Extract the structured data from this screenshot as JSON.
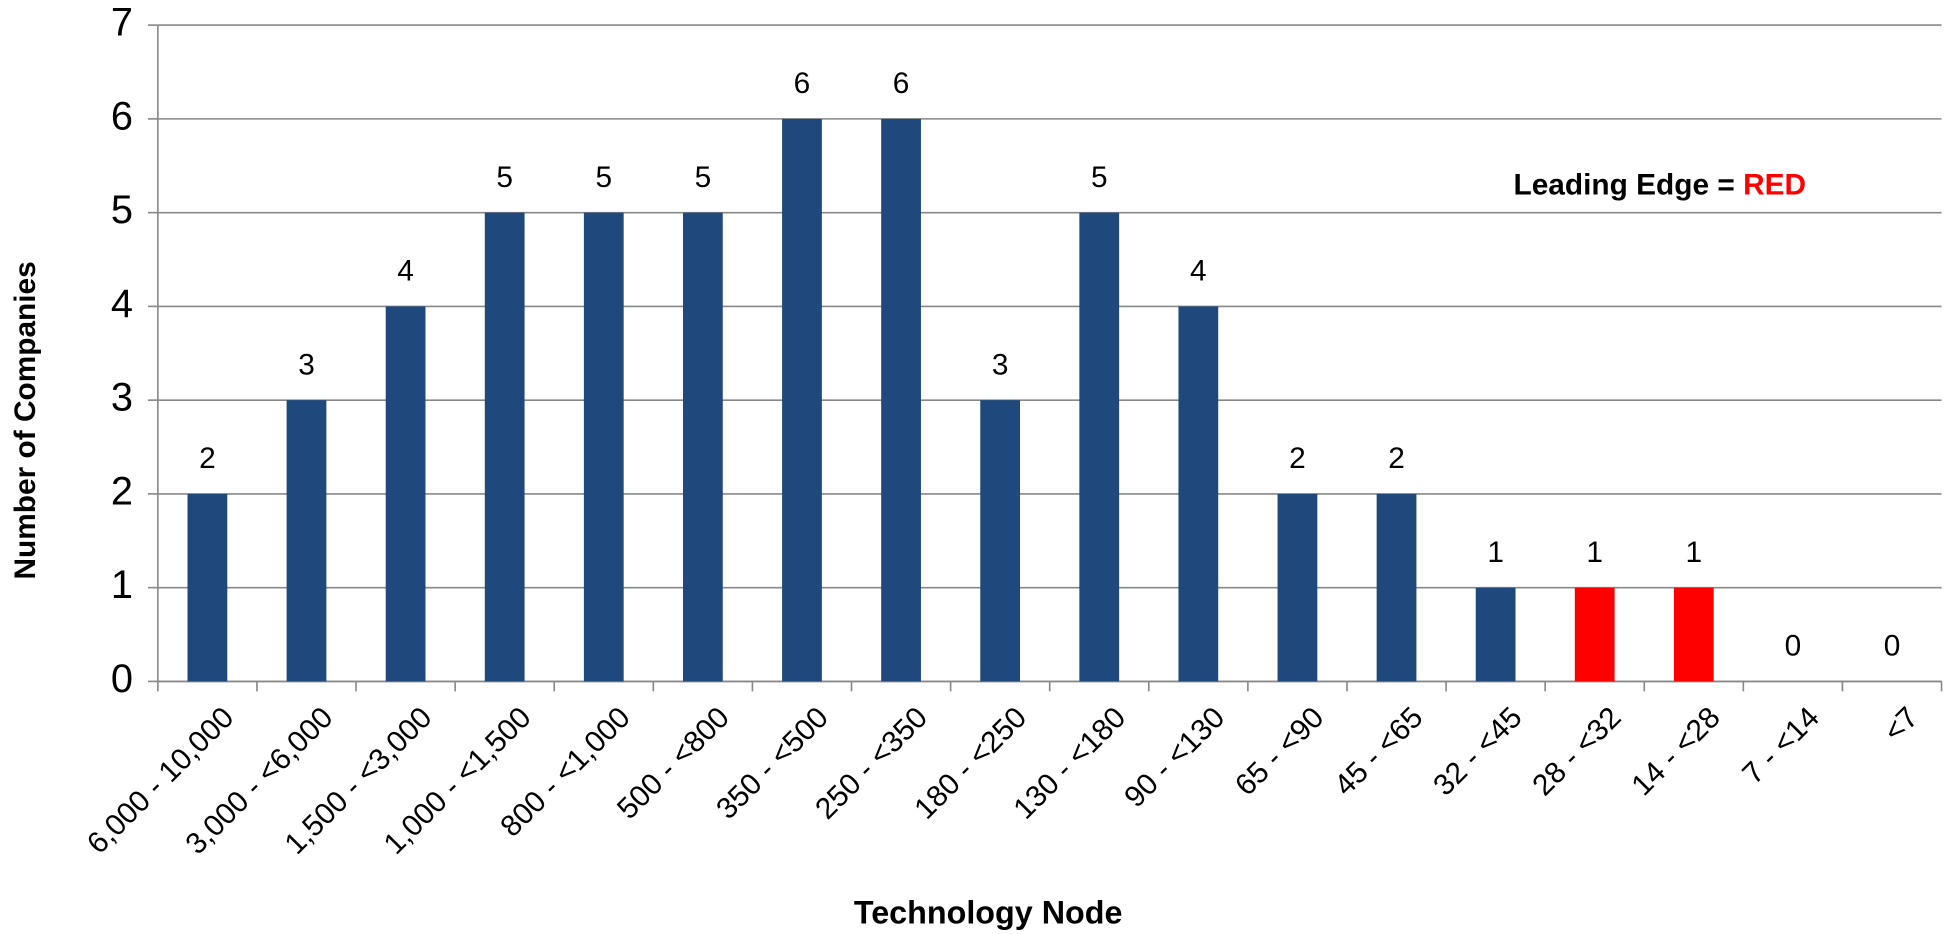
{
  "chart_data": {
    "type": "bar",
    "x_label": "Technology Node",
    "y_label": "Number of Companies",
    "categories": [
      "6,000 - 10,000",
      "3,000 - <6,000",
      "1,500 - <3,000",
      "1,000 - <1,500",
      "800 - <1,000",
      "500 - <800",
      "350 - <500",
      "250 - <350",
      "180 - <250",
      "130 - <180",
      "90 - <130",
      "65 - <90",
      "45 - <65",
      "32 - <45",
      "28 - <32",
      "14 - <28",
      "7 - <14",
      "<7"
    ],
    "values": [
      2,
      3,
      4,
      5,
      5,
      5,
      6,
      6,
      3,
      5,
      4,
      2,
      2,
      1,
      1,
      1,
      0,
      0
    ],
    "colors": [
      "#1f497d",
      "#1f497d",
      "#1f497d",
      "#1f497d",
      "#1f497d",
      "#1f497d",
      "#1f497d",
      "#1f497d",
      "#1f497d",
      "#1f497d",
      "#1f497d",
      "#1f497d",
      "#1f497d",
      "#1f497d",
      "#ff0000",
      "#ff0000",
      "#1f497d",
      "#1f497d"
    ],
    "ylim": [
      0,
      7
    ],
    "yticks": [
      0,
      1,
      2,
      3,
      4,
      5,
      6,
      7
    ],
    "grid": true,
    "annotation": {
      "text": "Leading Edge = ",
      "highlight": "RED",
      "highlight_color": "#ff0000"
    }
  }
}
